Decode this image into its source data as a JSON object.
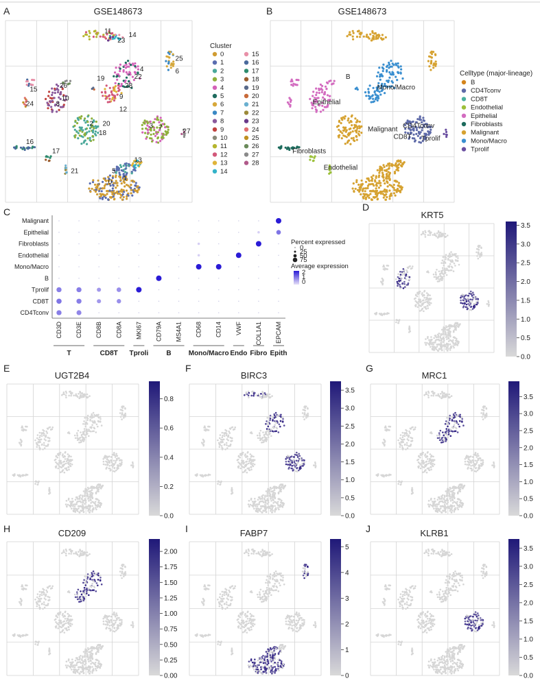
{
  "figure": {
    "panel_letters": [
      "A",
      "B",
      "C",
      "D",
      "E",
      "F",
      "G",
      "H",
      "I",
      "J"
    ],
    "panelA": {
      "title": "GSE148673",
      "legend_title": "Cluster",
      "clusters": [
        "0",
        "1",
        "2",
        "3",
        "4",
        "5",
        "6",
        "7",
        "8",
        "9",
        "10",
        "11",
        "12",
        "13",
        "14",
        "15",
        "16",
        "17",
        "18",
        "19",
        "20",
        "21",
        "22",
        "23",
        "24",
        "25",
        "26",
        "27",
        "28"
      ],
      "cluster_colors": [
        "#d09c32",
        "#5a6db0",
        "#4aa89a",
        "#8fb03b",
        "#d462b8",
        "#1f6b5e",
        "#d7a83a",
        "#3a88c4",
        "#8a5a9c",
        "#c0423e",
        "#8a8a7a",
        "#b5b52e",
        "#d2587a",
        "#e0b43a",
        "#33b3c9",
        "#e890a8",
        "#4a6a9c",
        "#2e8b6e",
        "#9b5d2e",
        "#5a6a8a",
        "#c86a3a",
        "#6ab0d0",
        "#9c8a3a",
        "#6a3a8a",
        "#e07070",
        "#c09020",
        "#6a8a5a",
        "#8a8a8a",
        "#b05a8a"
      ]
    },
    "panelB": {
      "title": "GSE148673",
      "legend_title": "Celltype (major-lineage)",
      "celltypes": [
        "B",
        "CD4Tconv",
        "CD8T",
        "Endothelial",
        "Epithelial",
        "Fibroblasts",
        "Malignant",
        "Mono/Macro",
        "Tprolif"
      ],
      "celltype_colors": [
        "#d4841c",
        "#5e6aa8",
        "#4ab09e",
        "#9cc03a",
        "#d36cc0",
        "#1d6b5c",
        "#d6a231",
        "#3a8fd0",
        "#6a4fa0"
      ],
      "map_labels": [
        "B",
        "Epithelial",
        "Mono/Macro",
        "Malignant",
        "CD4Tconv",
        "CD8T",
        "Tprolif",
        "Fibroblasts",
        "Endothelial"
      ]
    },
    "panelC": {
      "legend_pct_title": "Percent expressed",
      "legend_expr_title": "Average expression"
    },
    "feature_panels": [
      {
        "id": "D",
        "gene": "KRT5"
      },
      {
        "id": "E",
        "gene": "UGT2B4"
      },
      {
        "id": "F",
        "gene": "BIRC3"
      },
      {
        "id": "G",
        "gene": "MRC1"
      },
      {
        "id": "H",
        "gene": "CD209"
      },
      {
        "id": "I",
        "gene": "FABP7"
      },
      {
        "id": "J",
        "gene": "KLRB1"
      }
    ]
  },
  "chart_data": [
    {
      "type": "scatter",
      "panel": "A",
      "title": "GSE148673",
      "description_kind": "UMAP colored by cluster",
      "legend_title": "Cluster",
      "legend": [
        "0",
        "1",
        "2",
        "3",
        "4",
        "5",
        "6",
        "7",
        "8",
        "9",
        "10",
        "11",
        "12",
        "13",
        "14",
        "15",
        "16",
        "17",
        "18",
        "19",
        "20",
        "21",
        "22",
        "23",
        "24",
        "25",
        "26",
        "27",
        "28"
      ]
    },
    {
      "type": "scatter",
      "panel": "B",
      "title": "GSE148673",
      "legend_title": "Celltype (major-lineage)",
      "legend": [
        "B",
        "CD4Tconv",
        "CD8T",
        "Endothelial",
        "Epithelial",
        "Fibroblasts",
        "Malignant",
        "Mono/Macro",
        "Tprolif"
      ]
    },
    {
      "type": "dotplot",
      "panel": "C",
      "rows": [
        "Malignant",
        "Epithelial",
        "Fibroblasts",
        "Endothelial",
        "Mono/Macro",
        "B",
        "Tprolif",
        "CD8T",
        "CD4Tconv"
      ],
      "genes": [
        "CD3D",
        "CD3E",
        "CD8B",
        "CD8A",
        "MKI67",
        "CD79A",
        "MS4A1",
        "CD68",
        "CD14",
        "VWF",
        "COL1A1",
        "EPCAM"
      ],
      "gene_groups": [
        {
          "label": "T",
          "genes": [
            "CD3D",
            "CD3E"
          ]
        },
        {
          "label": "CD8T",
          "genes": [
            "CD8B",
            "CD8A"
          ]
        },
        {
          "label": "Tproli",
          "genes": [
            "MKI67"
          ]
        },
        {
          "label": "B",
          "genes": [
            "CD79A",
            "MS4A1"
          ]
        },
        {
          "label": "Mono/Macro",
          "genes": [
            "CD68",
            "CD14"
          ]
        },
        {
          "label": "Endo",
          "genes": [
            "VWF"
          ]
        },
        {
          "label": "Fibro",
          "genes": [
            "COL1A1"
          ]
        },
        {
          "label": "Epith",
          "genes": [
            "EPCAM"
          ]
        }
      ],
      "percent_legend": [
        "0",
        "25",
        "50",
        "75"
      ],
      "expression_legend": [
        "2",
        "1",
        "0"
      ],
      "dots": [
        {
          "row": "Malignant",
          "gene": "EPCAM",
          "pct": 75,
          "expr": 2.2
        },
        {
          "row": "Epithelial",
          "gene": "EPCAM",
          "pct": 45,
          "expr": 1.2
        },
        {
          "row": "Fibroblasts",
          "gene": "COL1A1",
          "pct": 75,
          "expr": 2.2
        },
        {
          "row": "Endothelial",
          "gene": "VWF",
          "pct": 75,
          "expr": 2.2
        },
        {
          "row": "Mono/Macro",
          "gene": "CD68",
          "pct": 75,
          "expr": 2.2
        },
        {
          "row": "Mono/Macro",
          "gene": "CD14",
          "pct": 75,
          "expr": 2.2
        },
        {
          "row": "B",
          "gene": "CD79A",
          "pct": 75,
          "expr": 2.2
        },
        {
          "row": "Tprolif",
          "gene": "MKI67",
          "pct": 75,
          "expr": 2.2
        },
        {
          "row": "Tprolif",
          "gene": "CD3D",
          "pct": 60,
          "expr": 1.1
        },
        {
          "row": "Tprolif",
          "gene": "CD3E",
          "pct": 60,
          "expr": 1.1
        },
        {
          "row": "Tprolif",
          "gene": "CD8B",
          "pct": 35,
          "expr": 0.8
        },
        {
          "row": "Tprolif",
          "gene": "CD8A",
          "pct": 45,
          "expr": 0.9
        },
        {
          "row": "CD8T",
          "gene": "CD3D",
          "pct": 65,
          "expr": 1.2
        },
        {
          "row": "CD8T",
          "gene": "CD3E",
          "pct": 60,
          "expr": 1.1
        },
        {
          "row": "CD8T",
          "gene": "CD8B",
          "pct": 35,
          "expr": 0.8
        },
        {
          "row": "CD8T",
          "gene": "CD8A",
          "pct": 40,
          "expr": 0.9
        },
        {
          "row": "CD4Tconv",
          "gene": "CD3D",
          "pct": 60,
          "expr": 1.1
        },
        {
          "row": "CD4Tconv",
          "gene": "CD3E",
          "pct": 55,
          "expr": 1.0
        },
        {
          "row": "Epithelial",
          "gene": "COL1A1",
          "pct": 5,
          "expr": 0.2
        },
        {
          "row": "Fibroblasts",
          "gene": "CD68",
          "pct": 5,
          "expr": 0.2
        },
        {
          "row": "Endothelial",
          "gene": "CD68",
          "pct": 5,
          "expr": 0.2
        }
      ]
    },
    {
      "type": "scatter",
      "panel": "D",
      "gene": "KRT5",
      "colorbar_ticks": [
        "3.5",
        "3.0",
        "2.5",
        "2.0",
        "1.5",
        "1.0",
        "0.5",
        "0.0"
      ],
      "colorbar_range": [
        0,
        3.6
      ]
    },
    {
      "type": "scatter",
      "panel": "E",
      "gene": "UGT2B4",
      "colorbar_ticks": [
        "0.8",
        "0.6",
        "0.4",
        "0.2",
        "0.0"
      ],
      "colorbar_range": [
        0,
        0.92
      ]
    },
    {
      "type": "scatter",
      "panel": "F",
      "gene": "BIRC3",
      "colorbar_ticks": [
        "3.5",
        "3.0",
        "2.5",
        "2.0",
        "1.5",
        "1.0",
        "0.5",
        "0.0"
      ],
      "colorbar_range": [
        0,
        3.75
      ]
    },
    {
      "type": "scatter",
      "panel": "G",
      "gene": "MRC1",
      "colorbar_ticks": [
        "3.5",
        "3.0",
        "2.5",
        "2.0",
        "1.5",
        "1.0",
        "0.5",
        "0.0"
      ],
      "colorbar_range": [
        0,
        3.95
      ]
    },
    {
      "type": "scatter",
      "panel": "H",
      "gene": "CD209",
      "colorbar_ticks": [
        "2.00",
        "1.75",
        "1.50",
        "1.25",
        "1.00",
        "0.75",
        "0.50",
        "0.25",
        "0.00"
      ],
      "colorbar_range": [
        0,
        2.2
      ]
    },
    {
      "type": "scatter",
      "panel": "I",
      "gene": "FABP7",
      "colorbar_ticks": [
        "5",
        "4",
        "3",
        "2",
        "1",
        "0"
      ],
      "colorbar_range": [
        0,
        5.3
      ]
    },
    {
      "type": "scatter",
      "panel": "J",
      "gene": "KLRB1",
      "colorbar_ticks": [
        "3.5",
        "3.0",
        "2.5",
        "2.0",
        "1.5",
        "1.0",
        "0.5",
        "0.0"
      ],
      "colorbar_range": [
        0,
        3.75
      ]
    }
  ]
}
